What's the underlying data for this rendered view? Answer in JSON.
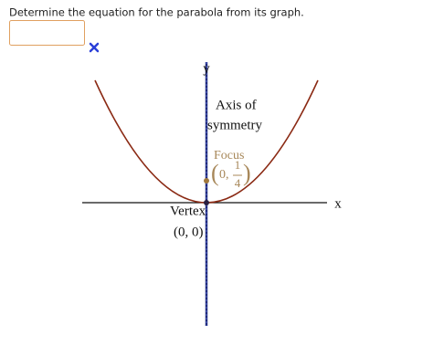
{
  "question": "Determine the equation for the parabola from its graph.",
  "graph": {
    "y_label": "y",
    "x_label": "x",
    "axis_label": [
      "Axis of",
      "symmetry"
    ],
    "focus": {
      "label": "Focus",
      "open": "(",
      "x": "0,",
      "numerator": "1",
      "denominator": "4",
      "close": ")"
    },
    "vertex": {
      "label": "Vertex",
      "coords": "(0, 0)"
    }
  }
}
